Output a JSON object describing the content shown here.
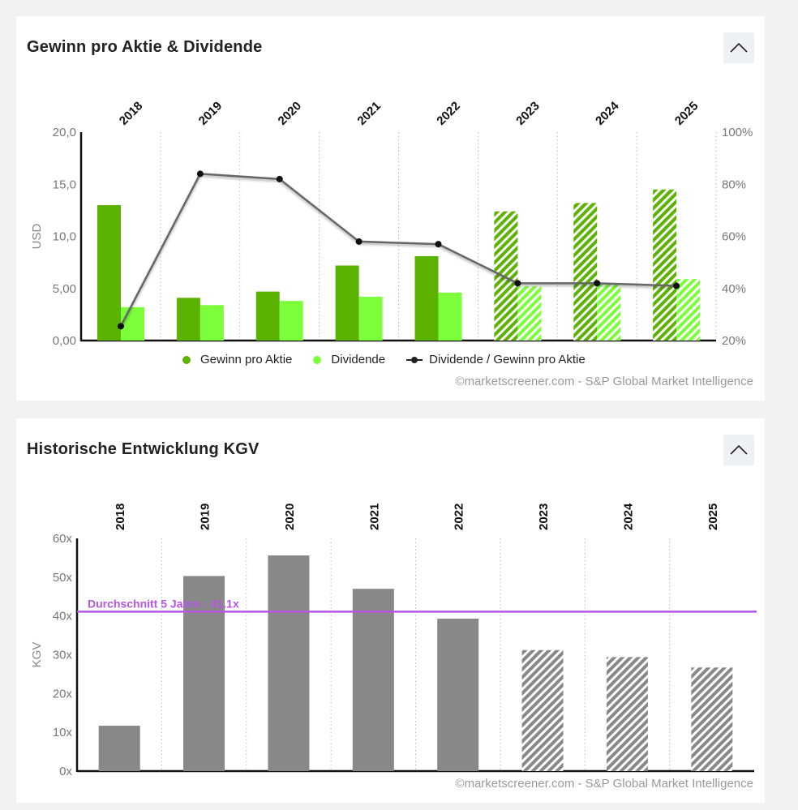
{
  "colors": {
    "eps": "#5bb300",
    "dividend": "#7cff3a",
    "ratio_line": "#666666",
    "ratio_marker": "#111111",
    "kgv_bar": "#888888",
    "avg_line": "#b755e6"
  },
  "icons": {
    "collapse": "chevron-up-icon"
  },
  "card1": {
    "title": "Gewinn pro Aktie & Dividende",
    "credit": "©marketscreener.com - S&P Global Market Intelligence",
    "legend": {
      "eps": "Gewinn pro Aktie",
      "dividend": "Dividende",
      "ratio": "Dividende / Gewinn pro Aktie"
    }
  },
  "card2": {
    "title": "Historische Entwicklung KGV",
    "credit": "©marketscreener.com - S&P Global Market Intelligence"
  },
  "chart_data": [
    {
      "type": "bar",
      "title": "Gewinn pro Aktie & Dividende",
      "categories": [
        "2018",
        "2019",
        "2020",
        "2021",
        "2022",
        "2023",
        "2024",
        "2025"
      ],
      "estimated_from_index": 5,
      "ylabel": "USD",
      "ylim": [
        0,
        20
      ],
      "y_ticks": [
        "0,00",
        "5,00",
        "10,0",
        "15,0",
        "20,0"
      ],
      "y2lim": [
        20,
        100
      ],
      "y2_ticks": [
        "20%",
        "40%",
        "60%",
        "80%",
        "100%"
      ],
      "series": [
        {
          "name": "Gewinn pro Aktie",
          "type": "bar",
          "values": [
            13.0,
            4.1,
            4.7,
            7.2,
            8.1,
            12.4,
            13.2,
            14.5
          ]
        },
        {
          "name": "Dividende",
          "type": "bar",
          "values": [
            3.2,
            3.4,
            3.8,
            4.2,
            4.6,
            5.2,
            5.5,
            5.9
          ]
        },
        {
          "name": "Dividende / Gewinn pro Aktie",
          "type": "line",
          "axis": "y2",
          "values": [
            25.5,
            84,
            82,
            58,
            57,
            42,
            42,
            41
          ]
        }
      ]
    },
    {
      "type": "bar",
      "title": "Historische Entwicklung KGV",
      "categories": [
        "2018",
        "2019",
        "2020",
        "2021",
        "2022",
        "2023",
        "2024",
        "2025"
      ],
      "estimated_from_index": 5,
      "ylabel": "KGV",
      "ylim": [
        0,
        60
      ],
      "y_ticks": [
        "0x",
        "10x",
        "20x",
        "30x",
        "40x",
        "50x",
        "60x"
      ],
      "values": [
        11.7,
        50.3,
        55.6,
        47.0,
        39.3,
        31.2,
        29.4,
        26.7
      ],
      "average": {
        "label": "Durchschnitt 5 Jahre : 41.1x",
        "value": 41.1
      }
    }
  ]
}
